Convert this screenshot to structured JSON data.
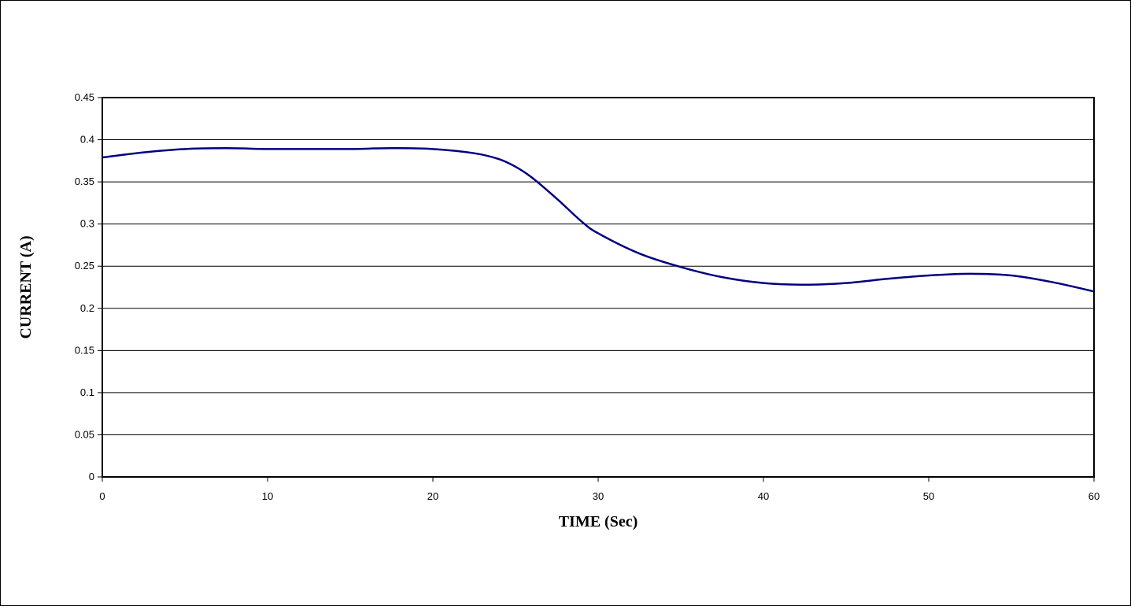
{
  "chart_data": {
    "type": "line",
    "title": "",
    "xlabel": "TIME (Sec)",
    "ylabel": "CURRENT (A)",
    "xlim": [
      0,
      60
    ],
    "ylim": [
      0,
      0.45
    ],
    "x_ticks": [
      0,
      10,
      20,
      30,
      40,
      50,
      60
    ],
    "y_ticks": [
      0,
      0.05,
      0.1,
      0.15,
      0.2,
      0.25,
      0.3,
      0.35,
      0.4,
      0.45
    ],
    "grid": "horizontal",
    "legend": "none",
    "series": [
      {
        "color": "#000080",
        "x": [
          0,
          2.5,
          5,
          7.5,
          10,
          12.5,
          15,
          17.5,
          20,
          22.5,
          24,
          25,
          26,
          27.5,
          29,
          30,
          32.5,
          35,
          37.5,
          40,
          42.5,
          45,
          47.5,
          50,
          52.5,
          55,
          57.5,
          60
        ],
        "y": [
          0.379,
          0.385,
          0.389,
          0.39,
          0.389,
          0.389,
          0.389,
          0.39,
          0.389,
          0.384,
          0.377,
          0.368,
          0.355,
          0.33,
          0.303,
          0.289,
          0.265,
          0.249,
          0.237,
          0.23,
          0.228,
          0.23,
          0.235,
          0.239,
          0.241,
          0.239,
          0.231,
          0.22
        ]
      }
    ]
  }
}
